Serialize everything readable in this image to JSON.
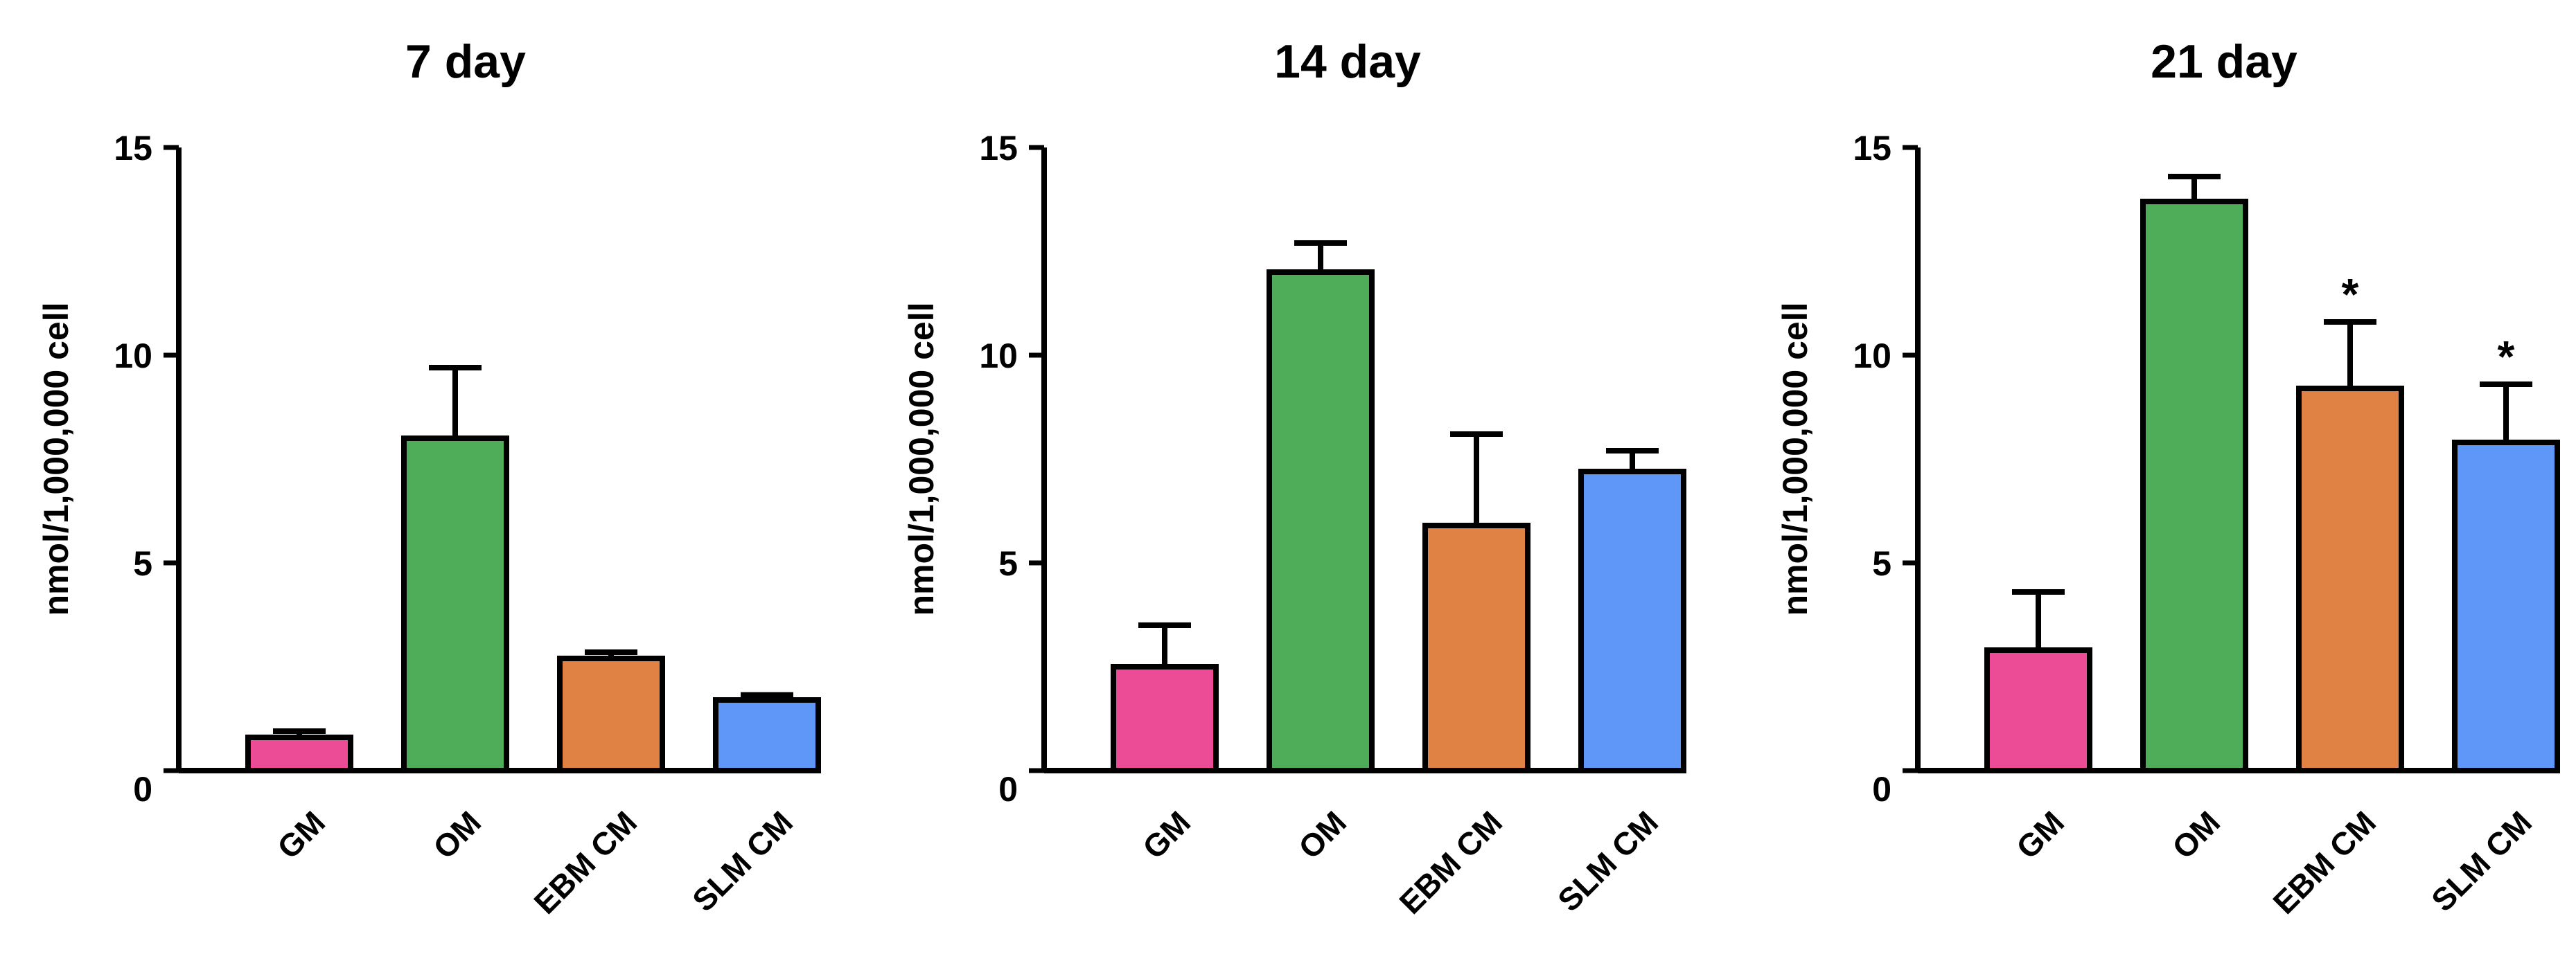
{
  "chart_data": [
    {
      "type": "bar",
      "title": "7 day",
      "ylabel": "nmol/1,000,000 cell",
      "ylim": [
        0,
        15
      ],
      "yticks": [
        "0",
        "5",
        "10",
        "15"
      ],
      "categories": [
        "GM",
        "OM",
        "EBM CM",
        "SLM CM"
      ],
      "values": [
        0.8,
        8.0,
        2.7,
        1.7
      ],
      "errors": [
        0.15,
        1.7,
        0.15,
        0.12
      ],
      "colors": [
        "#ec4b96",
        "#4fad5a",
        "#e08244",
        "#5e97f7"
      ],
      "annotations": [
        "",
        "",
        "",
        ""
      ]
    },
    {
      "type": "bar",
      "title": "14 day",
      "ylabel": "nmol/1,000,000 cell",
      "ylim": [
        0,
        15
      ],
      "yticks": [
        "0",
        "5",
        "10",
        "15"
      ],
      "categories": [
        "GM",
        "OM",
        "EBM CM",
        "SLM CM"
      ],
      "values": [
        2.5,
        12.0,
        5.9,
        7.2
      ],
      "errors": [
        1.0,
        0.7,
        2.2,
        0.5
      ],
      "colors": [
        "#ec4b96",
        "#4fad5a",
        "#e08244",
        "#5e97f7"
      ],
      "annotations": [
        "",
        "",
        "",
        ""
      ]
    },
    {
      "type": "bar",
      "title": "21 day",
      "ylabel": "nmol/1,000,000 cell",
      "ylim": [
        0,
        15
      ],
      "yticks": [
        "0",
        "5",
        "10",
        "15"
      ],
      "categories": [
        "GM",
        "OM",
        "EBM CM",
        "SLM CM"
      ],
      "values": [
        2.9,
        13.7,
        9.2,
        7.9
      ],
      "errors": [
        1.4,
        0.6,
        1.6,
        1.4
      ],
      "colors": [
        "#ec4b96",
        "#4fad5a",
        "#e08244",
        "#5e97f7"
      ],
      "annotations": [
        "",
        "",
        "*",
        "*"
      ]
    }
  ]
}
